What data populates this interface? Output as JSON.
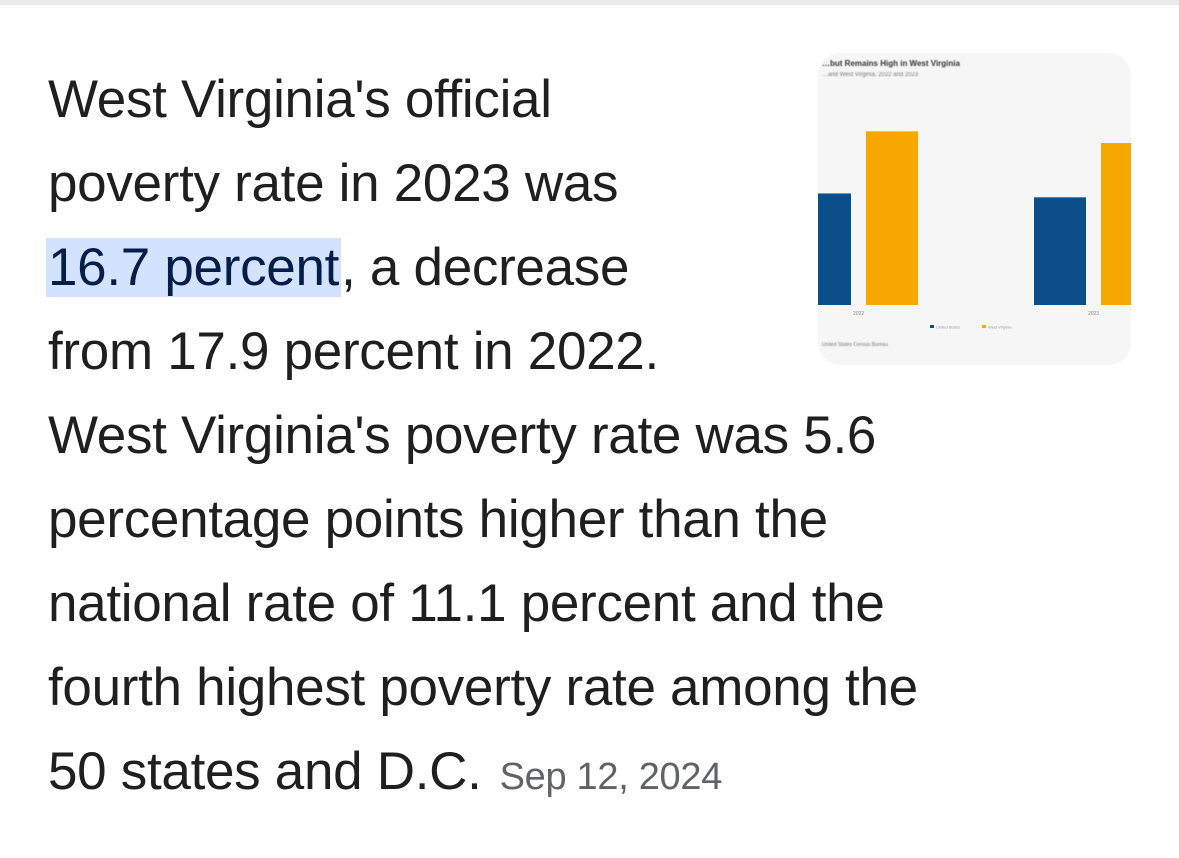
{
  "snippet": {
    "lines": [
      "West Virginia's official",
      "poverty rate in 2023 was",
      "from 17.9 percent in 2022.",
      "West Virginia's poverty rate was 5.6",
      "percentage points higher than the",
      "national rate of 11.1 percent and the",
      "fourth highest poverty rate among the",
      "50 states and D.C."
    ],
    "highlight": "16.7 percent",
    "after_highlight": ", a decrease",
    "date": "Sep 12, 2024"
  },
  "thumbnail": {
    "title": "…but Remains High in West Virginia",
    "subtitle": "…and West Virginia, 2022 and 2023",
    "source": "United States Census Bureau",
    "chart_data": {
      "type": "bar",
      "categories": [
        "2022",
        "2023"
      ],
      "series": [
        {
          "name": "United States",
          "values": [
            11.5,
            11.1
          ],
          "color": "#0b4f8a"
        },
        {
          "name": "West Virginia",
          "values": [
            17.9,
            16.7
          ],
          "color": "#f7a800"
        }
      ],
      "ylim": [
        0,
        20
      ]
    }
  }
}
